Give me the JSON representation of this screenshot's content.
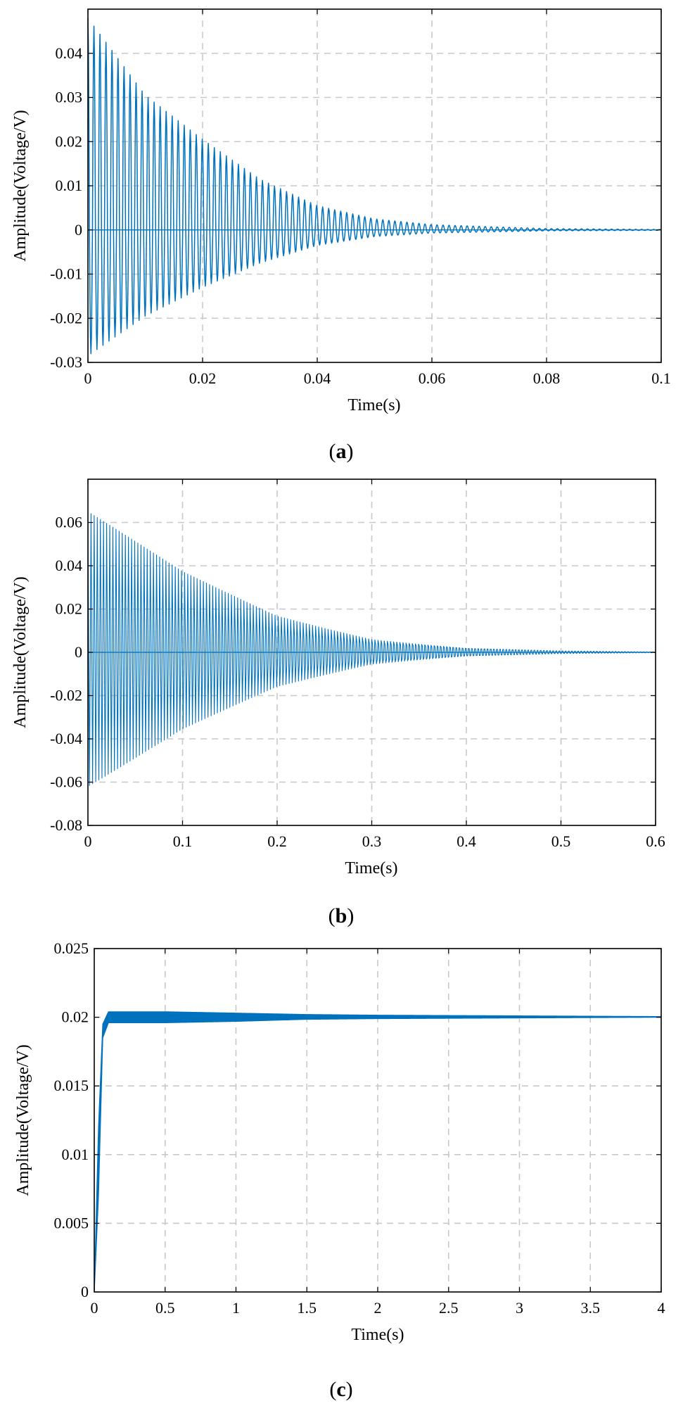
{
  "colors": {
    "series": "#0072BD",
    "grid": "#c8c8c8",
    "axes": "#000000"
  },
  "chart_data": [
    {
      "type": "line",
      "panel_label": "a",
      "xlabel": "Time(s)",
      "ylabel": "Amplitude(Voltage/V)",
      "xlim": [
        0,
        0.1
      ],
      "ylim": [
        -0.03,
        0.05
      ],
      "xticks": [
        0,
        0.02,
        0.04,
        0.06,
        0.08,
        0.1
      ],
      "xtick_labels": [
        "0",
        "0.02",
        "0.04",
        "0.06",
        "0.08",
        "0.1"
      ],
      "yticks": [
        -0.03,
        -0.02,
        -0.01,
        0,
        0.01,
        0.02,
        0.03,
        0.04
      ],
      "ytick_labels": [
        "-0.03",
        "-0.02",
        "-0.01",
        "0",
        "0.01",
        "0.02",
        "0.03",
        "0.04"
      ],
      "grid": true,
      "series": [
        {
          "kind": "decaying-oscillation",
          "envelope_upper": [
            [
              0,
              0.048
            ],
            [
              0.01,
              0.0305
            ],
            [
              0.02,
              0.0205
            ],
            [
              0.03,
              0.0115
            ],
            [
              0.04,
              0.0055
            ],
            [
              0.05,
              0.0025
            ],
            [
              0.06,
              0.0012
            ],
            [
              0.08,
              0.0003
            ],
            [
              0.1,
              0.0001
            ]
          ],
          "envelope_lower": [
            [
              0,
              -0.0285
            ],
            [
              0.01,
              -0.0195
            ],
            [
              0.02,
              -0.013
            ],
            [
              0.03,
              -0.0075
            ],
            [
              0.04,
              -0.0035
            ],
            [
              0.05,
              -0.0015
            ],
            [
              0.06,
              -0.0007
            ],
            [
              0.08,
              -0.0002
            ],
            [
              0.1,
              -0.0001
            ]
          ],
          "approx_period_s": 0.00105
        }
      ]
    },
    {
      "type": "line",
      "panel_label": "b",
      "xlabel": "Time(s)",
      "ylabel": "Amplitude(Voltage/V)",
      "xlim": [
        0,
        0.6
      ],
      "ylim": [
        -0.08,
        0.08
      ],
      "xticks": [
        0,
        0.1,
        0.2,
        0.3,
        0.4,
        0.5,
        0.6
      ],
      "xtick_labels": [
        "0",
        "0.1",
        "0.2",
        "0.3",
        "0.4",
        "0.5",
        "0.6"
      ],
      "yticks": [
        -0.08,
        -0.06,
        -0.04,
        -0.02,
        0,
        0.02,
        0.04,
        0.06
      ],
      "ytick_labels": [
        "-0.08",
        "-0.06",
        "-0.04",
        "-0.02",
        "0",
        "0.02",
        "0.04",
        "0.06"
      ],
      "grid": true,
      "series": [
        {
          "kind": "decaying-oscillation",
          "envelope_upper": [
            [
              0,
              0.065
            ],
            [
              0.1,
              0.038
            ],
            [
              0.2,
              0.018
            ],
            [
              0.3,
              0.007
            ],
            [
              0.4,
              0.0025
            ],
            [
              0.5,
              0.0008
            ],
            [
              0.6,
              0.0002
            ]
          ],
          "envelope_lower": [
            [
              0,
              -0.062
            ],
            [
              0.1,
              -0.036
            ],
            [
              0.2,
              -0.017
            ],
            [
              0.3,
              -0.0065
            ],
            [
              0.4,
              -0.0023
            ],
            [
              0.5,
              -0.0007
            ],
            [
              0.6,
              -0.0002
            ]
          ],
          "approx_period_s": 0.0033
        }
      ]
    },
    {
      "type": "line",
      "panel_label": "c",
      "xlabel": "Time(s)",
      "ylabel": "Amplitude(Voltage/V)",
      "xlim": [
        0,
        4
      ],
      "ylim": [
        0,
        0.025
      ],
      "xticks": [
        0,
        0.5,
        1,
        1.5,
        2,
        2.5,
        3,
        3.5,
        4
      ],
      "xtick_labels": [
        "0",
        "0.5",
        "1",
        "1.5",
        "2",
        "2.5",
        "3",
        "3.5",
        "4"
      ],
      "yticks": [
        0,
        0.005,
        0.01,
        0.015,
        0.02,
        0.025
      ],
      "ytick_labels": [
        "0",
        "0.005",
        "0.01",
        "0.015",
        "0.02",
        "0.025"
      ],
      "grid": true,
      "series": [
        {
          "kind": "step-response-band",
          "band_upper": [
            [
              0,
              0
            ],
            [
              0.03,
              0.012
            ],
            [
              0.06,
              0.0195
            ],
            [
              0.1,
              0.0204
            ],
            [
              0.5,
              0.0204
            ],
            [
              1,
              0.0203
            ],
            [
              1.5,
              0.0202
            ],
            [
              2,
              0.02015
            ],
            [
              3,
              0.0201
            ],
            [
              4,
              0.02005
            ]
          ],
          "band_lower": [
            [
              0,
              0
            ],
            [
              0.03,
              0.007
            ],
            [
              0.06,
              0.0185
            ],
            [
              0.1,
              0.0196
            ],
            [
              0.5,
              0.0196
            ],
            [
              1,
              0.0197
            ],
            [
              1.5,
              0.01985
            ],
            [
              2,
              0.0199
            ],
            [
              3,
              0.01995
            ],
            [
              4,
              0.02
            ]
          ]
        }
      ]
    }
  ]
}
